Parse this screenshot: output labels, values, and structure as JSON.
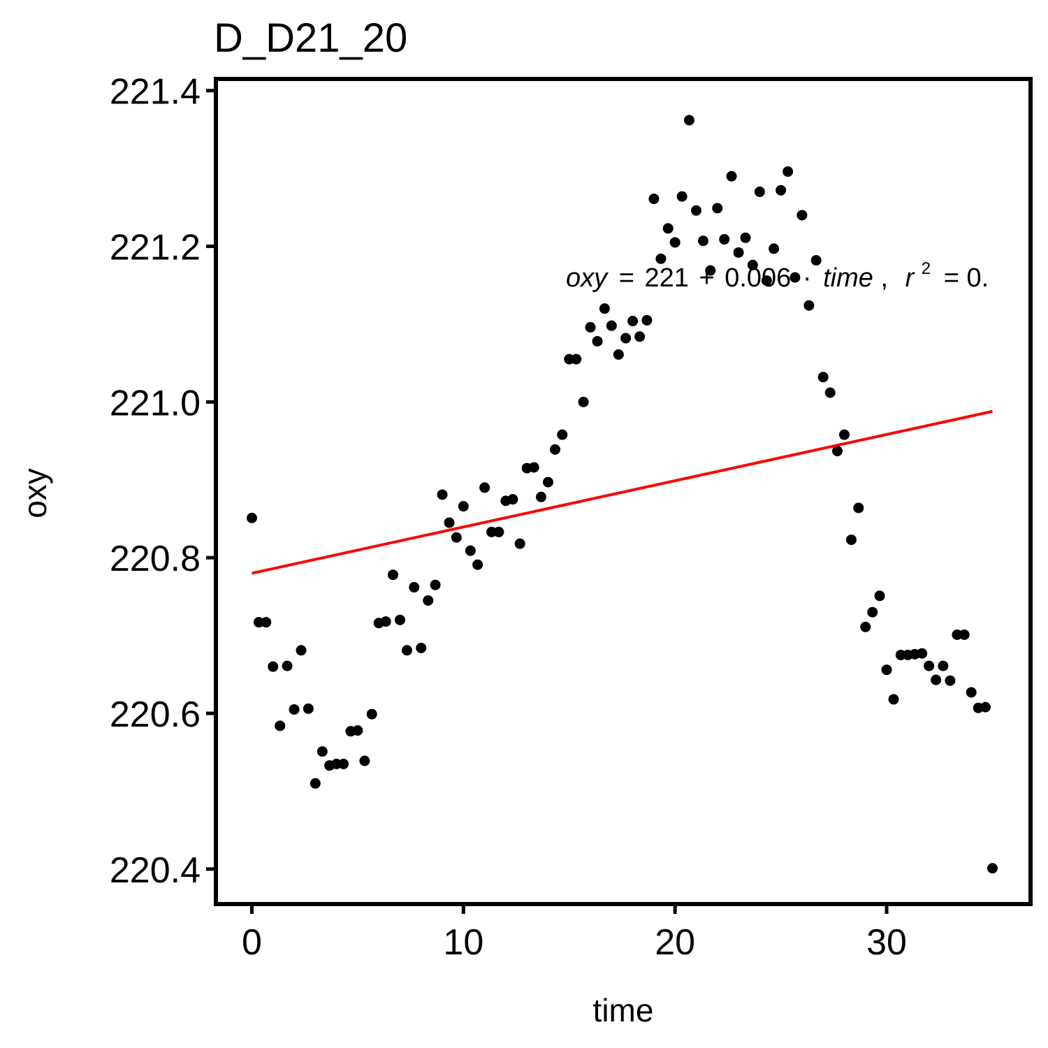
{
  "chart_data": {
    "type": "scatter",
    "title": "D_D21_20",
    "xlabel": "time",
    "ylabel": "oxy",
    "xlim": [
      -1.7,
      36.8
    ],
    "ylim": [
      220.355,
      221.415
    ],
    "x_ticks": [
      0,
      10,
      20,
      30
    ],
    "y_ticks": [
      220.4,
      220.6,
      220.8,
      221.0,
      221.2,
      221.4
    ],
    "y_tick_labels": [
      "220.4",
      "220.6",
      "220.8",
      "221.0",
      "221.2",
      "221.4"
    ],
    "grid": false,
    "series": [
      {
        "x": [
          0.0,
          0.33,
          0.67,
          1.0,
          1.33,
          1.67,
          2.0,
          2.33,
          2.67,
          3.0,
          3.33,
          3.67,
          4.0,
          4.33,
          4.67,
          5.0,
          5.33,
          5.67,
          6.0,
          6.33,
          6.67,
          7.0,
          7.33,
          7.67,
          8.0,
          8.33,
          8.67,
          9.0,
          9.33,
          9.67,
          10.0,
          10.33,
          10.67,
          11.0,
          11.33,
          11.67,
          12.0,
          12.33,
          12.67,
          13.0,
          13.33,
          13.67,
          14.0,
          14.33,
          14.67,
          15.0,
          15.33,
          15.67,
          16.0,
          16.33,
          16.67,
          17.0,
          17.33,
          17.67,
          18.0,
          18.33,
          18.67,
          19.0,
          19.33,
          19.67,
          20.0,
          20.33,
          20.67,
          21.0,
          21.33,
          21.67,
          22.0,
          22.33,
          22.67,
          23.0,
          23.33,
          23.67,
          24.0,
          24.33,
          24.67,
          25.0,
          25.33,
          25.67,
          26.0,
          26.33,
          26.67,
          27.0,
          27.33,
          27.67,
          28.0,
          28.33,
          28.67,
          29.0,
          29.33,
          29.67,
          30.0,
          30.33,
          30.67,
          31.0,
          31.33,
          31.67,
          32.0,
          32.33,
          32.67,
          33.0,
          33.33,
          33.67,
          34.0,
          34.33,
          34.67,
          35.0
        ],
        "y": [
          220.851,
          220.717,
          220.717,
          220.66,
          220.584,
          220.661,
          220.605,
          220.681,
          220.606,
          220.51,
          220.551,
          220.533,
          220.535,
          220.535,
          220.577,
          220.578,
          220.539,
          220.599,
          220.716,
          220.718,
          220.778,
          220.72,
          220.681,
          220.762,
          220.684,
          220.745,
          220.765,
          220.881,
          220.845,
          220.826,
          220.866,
          220.809,
          220.791,
          220.89,
          220.833,
          220.833,
          220.873,
          220.875,
          220.818,
          220.915,
          220.916,
          220.878,
          220.897,
          220.939,
          220.958,
          221.055,
          221.055,
          221.0,
          221.096,
          221.078,
          221.12,
          221.098,
          221.061,
          221.082,
          221.104,
          221.084,
          221.105,
          221.261,
          221.184,
          221.223,
          221.205,
          221.264,
          221.362,
          221.246,
          221.207,
          221.169,
          221.249,
          221.209,
          221.29,
          221.192,
          221.211,
          221.176,
          221.27,
          221.156,
          221.197,
          221.272,
          221.296,
          221.16,
          221.24,
          221.124,
          221.182,
          221.032,
          221.012,
          220.937,
          220.958,
          220.823,
          220.864,
          220.711,
          220.73,
          220.751,
          220.656,
          220.618,
          220.675,
          220.675,
          220.676,
          220.677,
          220.661,
          220.643,
          220.661,
          220.642,
          220.701,
          220.701,
          220.627,
          220.607,
          220.608,
          220.401
        ]
      }
    ],
    "fit_line": {
      "x": [
        0,
        35
      ],
      "y": [
        220.78,
        220.988
      ]
    },
    "annotation": {
      "lhs": "oxy",
      "eq": "=",
      "intercept": "221",
      "plus": "+",
      "slope": "0.006",
      "dot": "·",
      "var": "time",
      "comma": ",",
      "r": "r",
      "r_sup": "2",
      "r_eq": "= 0."
    },
    "colors": {
      "points": "#000000",
      "fit_line": "#ff0000",
      "axis": "#000000",
      "background": "#ffffff"
    }
  }
}
